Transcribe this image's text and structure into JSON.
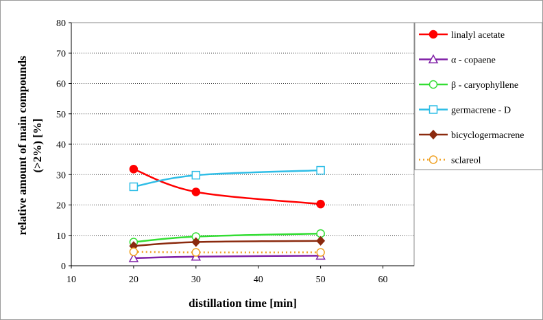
{
  "chart_data": {
    "type": "line",
    "xlabel": "distillation time [min]",
    "ylabel_line1": "relative amount of main compounds",
    "ylabel_line2": "(>2%) [%]",
    "xlim": [
      10,
      65
    ],
    "ylim": [
      0,
      80
    ],
    "xticks": [
      10,
      20,
      30,
      40,
      50,
      60
    ],
    "yticks": [
      0,
      10,
      20,
      30,
      40,
      50,
      60,
      70,
      80
    ],
    "grid": "horizontal dotted",
    "legend_position": "right",
    "x": [
      20,
      30,
      50
    ],
    "series": [
      {
        "name": "linalyl acetate",
        "values": [
          31.8,
          24.3,
          20.3
        ],
        "color": "#ff0000",
        "marker": "filled-circle",
        "line": "solid"
      },
      {
        "name": "α - copaene",
        "values": [
          2.5,
          3.0,
          3.3
        ],
        "color": "#7f1fa6",
        "marker": "open-triangle",
        "line": "solid"
      },
      {
        "name": "β - caryophyllene",
        "values": [
          7.8,
          9.6,
          10.6
        ],
        "color": "#33dd33",
        "marker": "open-circle",
        "line": "solid"
      },
      {
        "name": "germacrene - D",
        "values": [
          26.0,
          29.8,
          31.4
        ],
        "color": "#2ebde6",
        "marker": "open-square",
        "line": "solid"
      },
      {
        "name": "bicyclogermacrene",
        "values": [
          6.5,
          7.8,
          8.2
        ],
        "color": "#8b2a0e",
        "marker": "filled-diamond",
        "line": "solid"
      },
      {
        "name": "sclareol",
        "values": [
          4.6,
          4.4,
          4.4
        ],
        "color": "#f0a020",
        "marker": "open-circle",
        "line": "dotted"
      }
    ]
  }
}
